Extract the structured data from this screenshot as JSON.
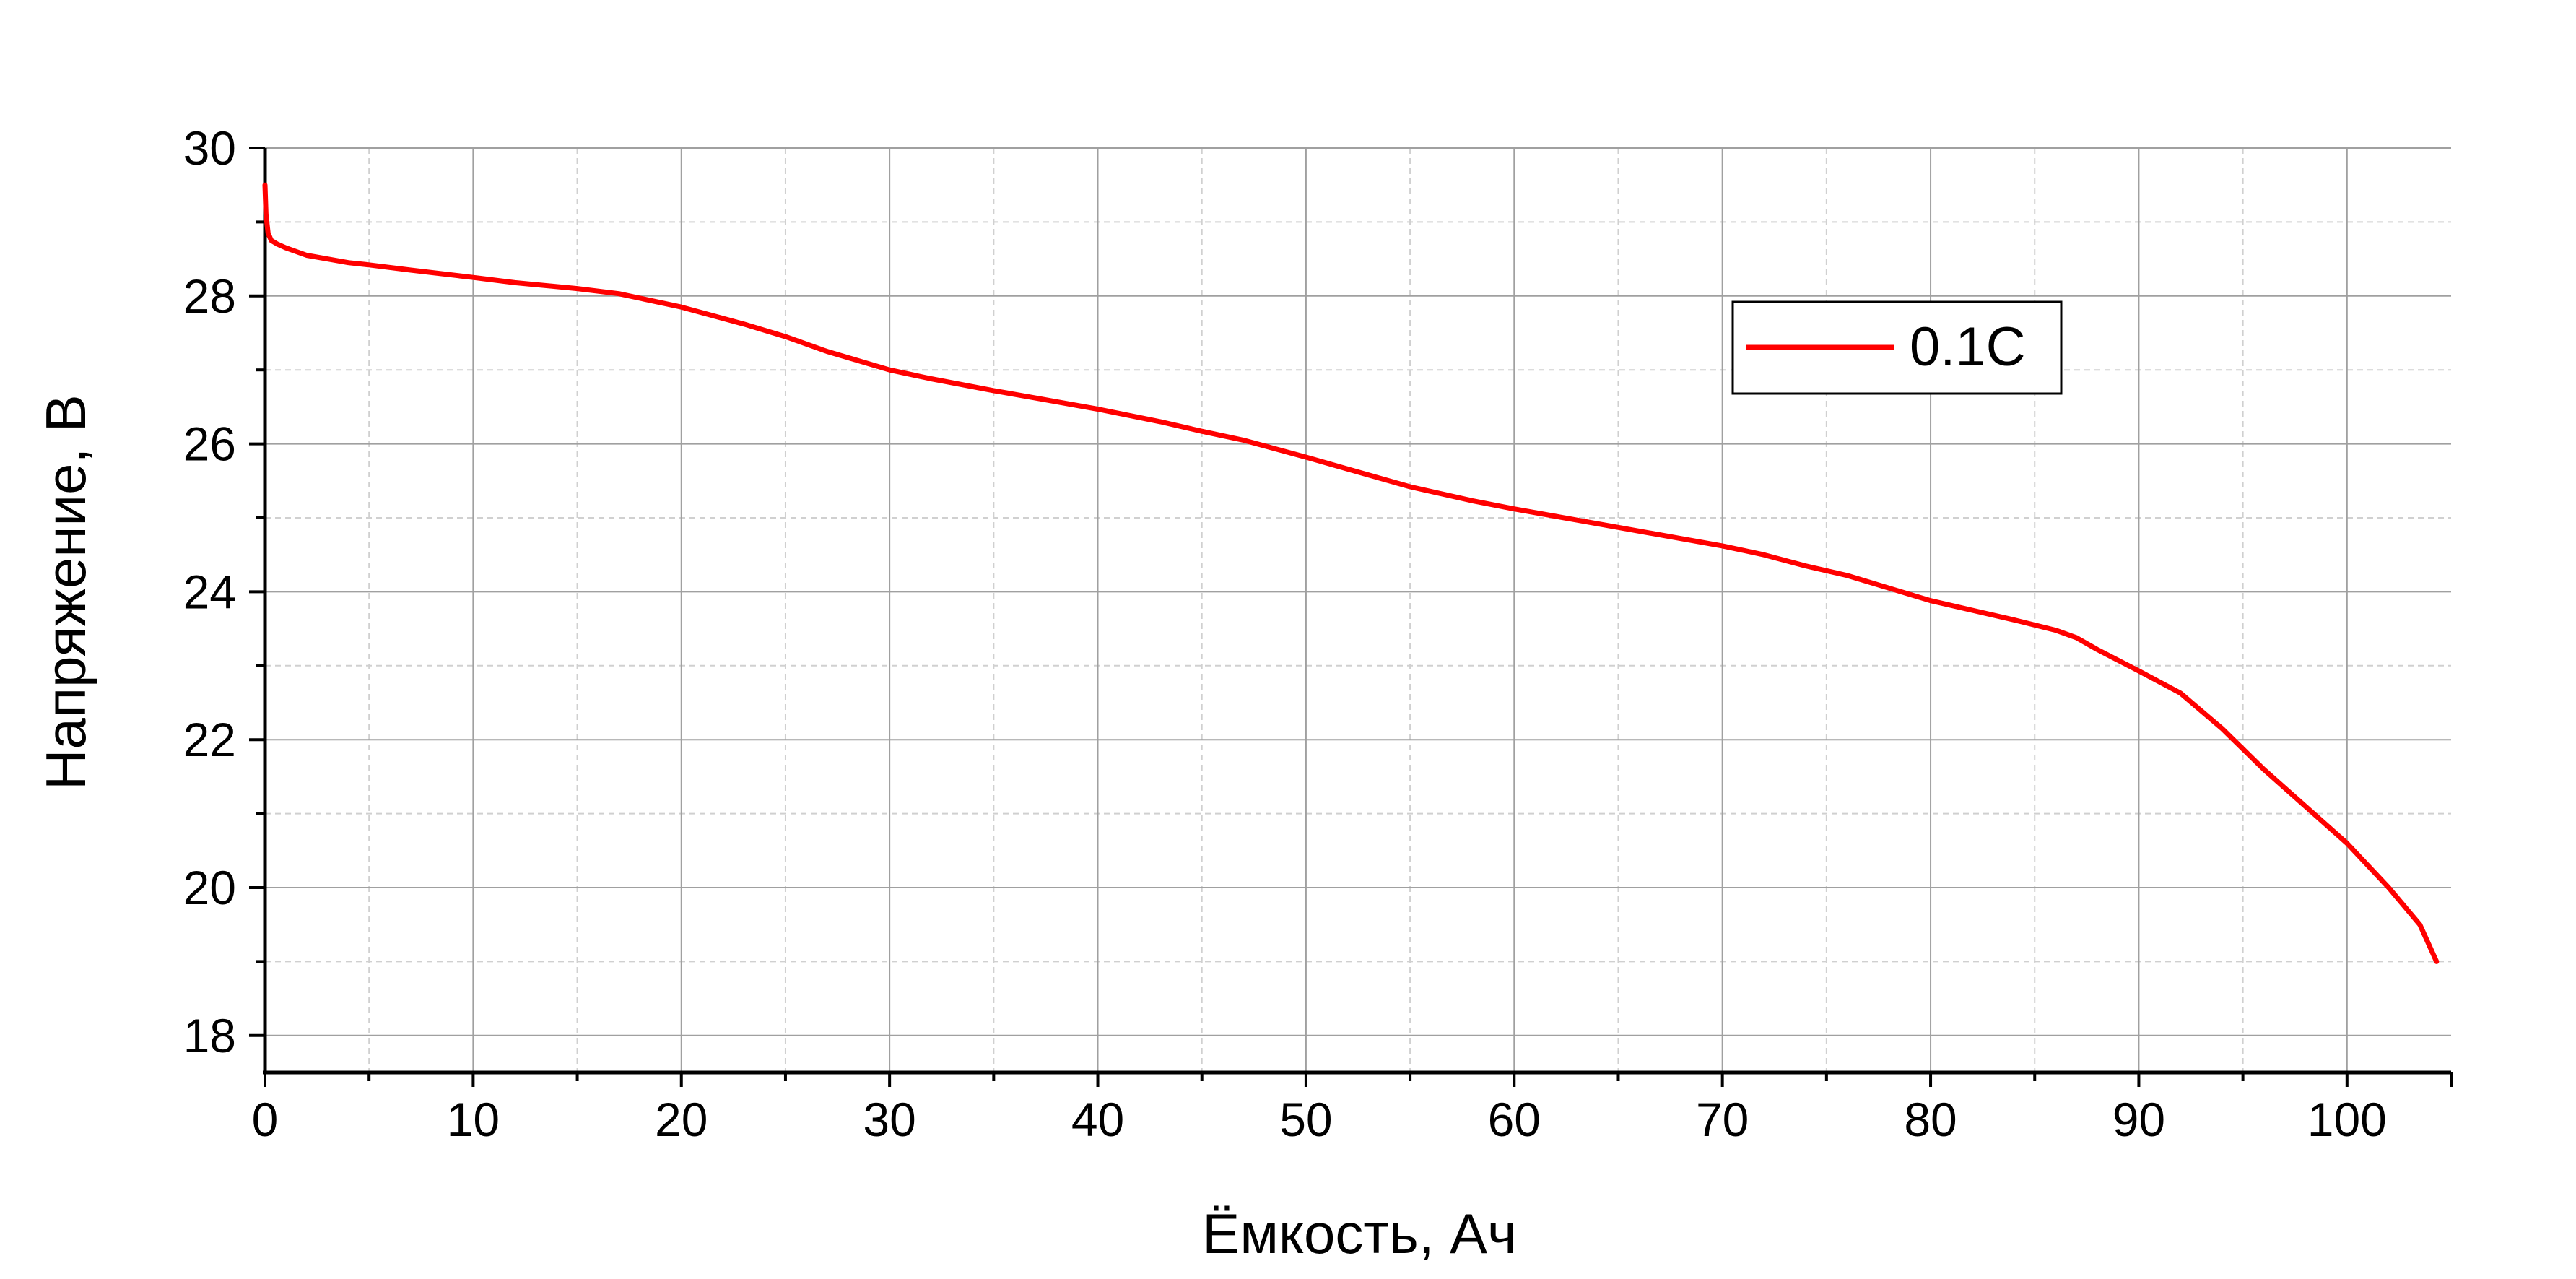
{
  "chart_data": {
    "type": "line",
    "xlabel": "Ёмкость, Ач",
    "ylabel": "Напряжение, В",
    "xlim": [
      0,
      105
    ],
    "ylim": [
      17.5,
      30
    ],
    "x_ticks": [
      0,
      10,
      20,
      30,
      40,
      50,
      60,
      70,
      80,
      90,
      100
    ],
    "x_tick_labels": [
      "0",
      "10",
      "20",
      "30",
      "40",
      "50",
      "60",
      "70",
      "80",
      "90",
      "100"
    ],
    "y_ticks": [
      18,
      20,
      22,
      24,
      26,
      28,
      30
    ],
    "y_tick_labels": [
      "18",
      "20",
      "22",
      "24",
      "26",
      "28",
      "30"
    ],
    "grid": {
      "major": true,
      "minor": true
    },
    "legend": {
      "position": "top-right",
      "entries": [
        "0.1C"
      ]
    },
    "colors": {
      "series": "#ff0000",
      "grid_major": "#a0a0a0",
      "grid_minor": "#d0d0d0",
      "axis": "#000000"
    },
    "series": [
      {
        "name": "0.1C",
        "x": [
          0,
          0.05,
          0.15,
          0.3,
          0.6,
          1,
          2,
          3,
          4,
          5,
          7,
          10,
          12,
          15,
          17,
          20,
          23,
          25,
          27,
          30,
          32,
          35,
          37,
          40,
          43,
          45,
          47,
          50,
          53,
          55,
          58,
          60,
          63,
          65,
          68,
          70,
          72,
          74,
          76,
          78,
          80,
          82,
          84,
          86,
          87,
          88,
          90,
          92,
          94,
          96,
          98,
          100,
          102,
          103.5,
          104.3
        ],
        "y": [
          29.5,
          29.1,
          28.85,
          28.75,
          28.7,
          28.65,
          28.55,
          28.5,
          28.45,
          28.42,
          28.35,
          28.25,
          28.18,
          28.1,
          28.03,
          27.85,
          27.62,
          27.45,
          27.25,
          27.0,
          26.88,
          26.72,
          26.62,
          26.47,
          26.3,
          26.17,
          26.05,
          25.82,
          25.58,
          25.42,
          25.23,
          25.12,
          24.97,
          24.87,
          24.72,
          24.62,
          24.5,
          24.35,
          24.22,
          24.05,
          23.88,
          23.75,
          23.62,
          23.48,
          23.38,
          23.22,
          22.93,
          22.63,
          22.15,
          21.6,
          21.1,
          20.6,
          20.0,
          19.5,
          19.0
        ]
      }
    ]
  }
}
